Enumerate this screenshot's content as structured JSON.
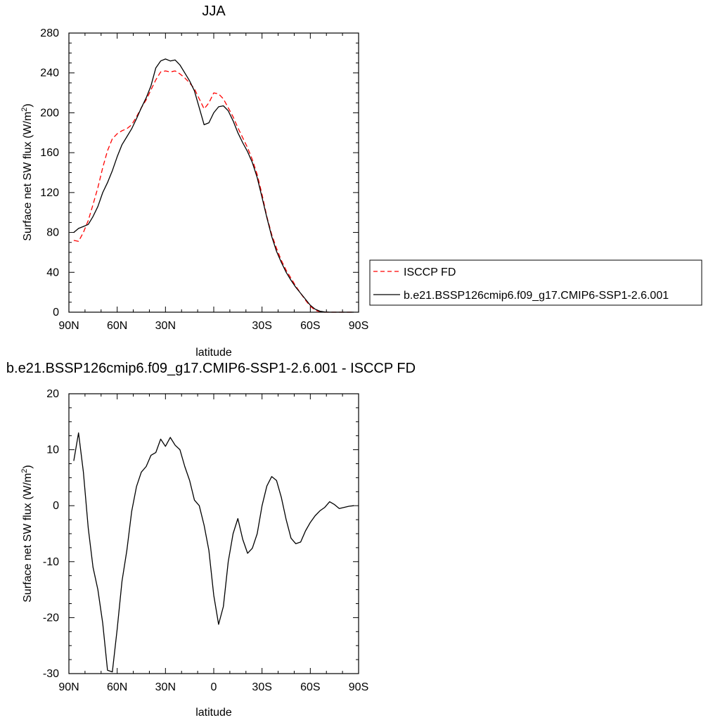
{
  "chart_data": [
    {
      "type": "line",
      "title": "JJA",
      "xlabel": "latitude",
      "ylabel": "Surface net SW flux (W/m",
      "ylabel_sup": "2",
      "ylabel_end": ")",
      "xlim": [
        90,
        -90
      ],
      "ylim": [
        0,
        280
      ],
      "x_ticks": [
        90,
        60,
        30,
        0,
        -30,
        -60,
        -90
      ],
      "x_tick_labels": [
        "90N",
        "60N",
        "30N",
        "",
        "30S",
        "60S",
        "90S"
      ],
      "y_ticks": [
        0,
        40,
        80,
        120,
        160,
        200,
        240,
        280
      ],
      "y_tick_labels": [
        "0",
        "40",
        "80",
        "120",
        "160",
        "200",
        "240",
        "280"
      ],
      "legend": "right",
      "series": [
        {
          "name": "ISCCP FD",
          "color": "#ff0000",
          "dash": "dashed",
          "x": [
            87,
            84,
            81,
            78,
            75,
            72,
            69,
            66,
            63,
            60,
            57,
            54,
            51,
            48,
            45,
            42,
            39,
            36,
            33,
            30,
            27,
            24,
            21,
            18,
            15,
            12,
            9,
            6,
            3,
            0,
            -3,
            -6,
            -9,
            -12,
            -15,
            -18,
            -21,
            -24,
            -27,
            -30,
            -33,
            -36,
            -39,
            -42,
            -45,
            -48,
            -51,
            -54,
            -57,
            -60,
            -63,
            -66,
            -69,
            -72,
            -75,
            -78,
            -81,
            -84,
            -87
          ],
          "y": [
            72,
            71,
            80,
            92,
            108,
            125,
            145,
            162,
            174,
            179,
            182,
            184,
            188,
            196,
            205,
            213,
            223,
            233,
            241,
            242,
            241,
            242,
            239,
            235,
            230,
            224,
            214,
            204,
            210,
            220,
            219,
            214,
            205,
            196,
            185,
            175,
            165,
            153,
            138,
            118,
            96,
            78,
            64,
            52,
            42,
            34,
            26,
            19,
            12,
            6,
            2,
            0.5,
            0,
            0,
            0,
            0,
            0,
            0,
            0
          ]
        },
        {
          "name": "b.e21.BSSP126cmip6.f09_g17.CMIP6-SSP1-2.6.001",
          "color": "#000000",
          "dash": "solid",
          "x": [
            87,
            84,
            81,
            78,
            75,
            72,
            69,
            66,
            63,
            60,
            57,
            54,
            51,
            48,
            45,
            42,
            39,
            36,
            33,
            30,
            27,
            24,
            21,
            18,
            15,
            12,
            9,
            6,
            3,
            0,
            -3,
            -6,
            -9,
            -12,
            -15,
            -18,
            -21,
            -24,
            -27,
            -30,
            -33,
            -36,
            -39,
            -42,
            -45,
            -48,
            -51,
            -54,
            -57,
            -60,
            -63,
            -66,
            -69,
            -72,
            -75,
            -78,
            -81,
            -84,
            -87
          ],
          "y": [
            80,
            84,
            86,
            88,
            96,
            106,
            120,
            130,
            142,
            156,
            168,
            176,
            184,
            194,
            205,
            215,
            227,
            245,
            252,
            254,
            252,
            253,
            248,
            240,
            232,
            222,
            205,
            188,
            190,
            200,
            206,
            207,
            202,
            192,
            180,
            170,
            161,
            150,
            135,
            115,
            95,
            76,
            61,
            50,
            40,
            32,
            25,
            19,
            13,
            7,
            3,
            1,
            0.2,
            0,
            0,
            0,
            0,
            0,
            0
          ]
        }
      ]
    },
    {
      "type": "line",
      "title": "b.e21.BSSP126cmip6.f09_g17.CMIP6-SSP1-2.6.001 - ISCCP FD",
      "xlabel": "latitude",
      "ylabel": "Surface net SW flux (W/m",
      "ylabel_sup": "2",
      "ylabel_end": ")",
      "xlim": [
        90,
        -90
      ],
      "ylim": [
        -30,
        20
      ],
      "x_ticks": [
        90,
        60,
        30,
        0,
        -30,
        -60,
        -90
      ],
      "x_tick_labels": [
        "90N",
        "60N",
        "30N",
        "0",
        "30S",
        "60S",
        "90S"
      ],
      "y_ticks": [
        -30,
        -20,
        -10,
        0,
        10,
        20
      ],
      "y_tick_labels": [
        "-30",
        "-20",
        "-10",
        "0",
        "10",
        "20"
      ],
      "series": [
        {
          "color": "#000000",
          "dash": "solid",
          "x": [
            87,
            84,
            81,
            78,
            75,
            72,
            69,
            66,
            63,
            60,
            57,
            54,
            51,
            48,
            45,
            42,
            39,
            36,
            33,
            30,
            27,
            24,
            21,
            18,
            15,
            12,
            9,
            6,
            3,
            0,
            -3,
            -6,
            -9,
            -12,
            -15,
            -18,
            -21,
            -24,
            -27,
            -30,
            -33,
            -36,
            -39,
            -42,
            -45,
            -48,
            -51,
            -54,
            -57,
            -60,
            -63,
            -66,
            -69,
            -72,
            -75,
            -78,
            -81,
            -84,
            -87
          ],
          "y": [
            8,
            13,
            6,
            -4,
            -11,
            -15,
            -21,
            -29.4,
            -29.7,
            -22,
            -13.5,
            -8,
            -1,
            3.4,
            6,
            7,
            9,
            9.5,
            11.9,
            10.6,
            12.2,
            10.8,
            10,
            7,
            4.5,
            1,
            0,
            -3.5,
            -8,
            -16,
            -21.2,
            -18,
            -10,
            -5,
            -2.3,
            -6,
            -8.5,
            -7.6,
            -5,
            0,
            3.5,
            5.2,
            4.5,
            1.5,
            -2.5,
            -5.8,
            -6.8,
            -6.5,
            -4.5,
            -3,
            -1.8,
            -0.9,
            -0.3,
            0.7,
            0.2,
            -0.5,
            -0.3,
            -0.1,
            0
          ]
        }
      ]
    }
  ]
}
